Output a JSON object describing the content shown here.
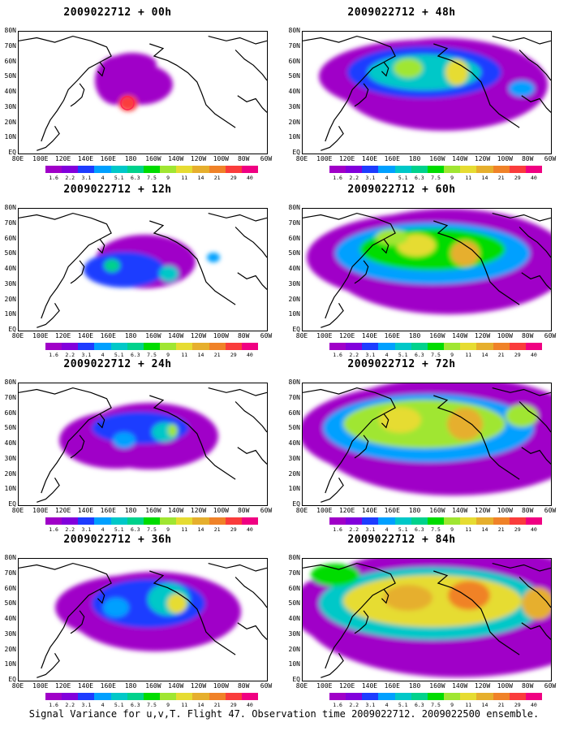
{
  "caption": "Signal Variance for u,v,T. Flight 47. Observation time 2009022712. 2009022500 ensemble.",
  "lat_labels": [
    "80N",
    "70N",
    "60N",
    "50N",
    "40N",
    "30N",
    "20N",
    "10N",
    "EQ"
  ],
  "lon_labels": [
    "80E",
    "100E",
    "120E",
    "140E",
    "160E",
    "180",
    "160W",
    "140W",
    "120W",
    "100W",
    "80W",
    "60W"
  ],
  "colorbar": {
    "labels": [
      "1.6",
      "2.2",
      "3.1",
      "4",
      "5.1",
      "6.3",
      "7.5",
      "9",
      "11",
      "14",
      "21",
      "29",
      "40"
    ],
    "colors": [
      "#a000c8",
      "#8200dc",
      "#1e3cff",
      "#00a0ff",
      "#00c8c8",
      "#00d28c",
      "#00dc00",
      "#a0e632",
      "#e6dc32",
      "#e6af2d",
      "#f08228",
      "#fa3c3c",
      "#f00082"
    ]
  },
  "panels": [
    {
      "title": "2009022712 + 00h",
      "intensity": 0
    },
    {
      "title": "2009022712 + 48h",
      "intensity": 4
    },
    {
      "title": "2009022712 + 12h",
      "intensity": 1
    },
    {
      "title": "2009022712 + 60h",
      "intensity": 5
    },
    {
      "title": "2009022712 + 24h",
      "intensity": 2
    },
    {
      "title": "2009022712 + 72h",
      "intensity": 6
    },
    {
      "title": "2009022712 + 36h",
      "intensity": 3
    },
    {
      "title": "2009022712 + 84h",
      "intensity": 7
    }
  ]
}
